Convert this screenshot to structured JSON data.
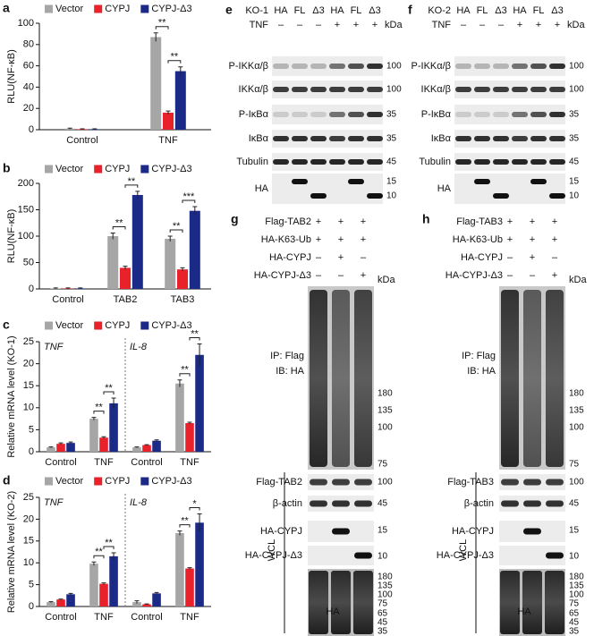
{
  "chart_data": [
    {
      "panel": "a",
      "type": "bar",
      "y_label": "RLU(NF-κB)",
      "categories": [
        "Control",
        "TNF"
      ],
      "series": [
        {
          "name": "Vector",
          "color": "#a6a6a6",
          "values": [
            1,
            87
          ],
          "errors": [
            0.5,
            4
          ]
        },
        {
          "name": "CYPJ",
          "color": "#e8212b",
          "values": [
            0.5,
            16
          ],
          "errors": [
            0.3,
            1.5
          ]
        },
        {
          "name": "CYPJ-Δ3",
          "color": "#1c2a87",
          "values": [
            0.5,
            55
          ],
          "errors": [
            0.3,
            4
          ]
        }
      ],
      "ylim": [
        0,
        100
      ],
      "yticks": [
        0,
        20,
        40,
        60,
        80,
        100
      ],
      "significance": [
        null,
        [
          {
            "between": [
              "Vector",
              "CYPJ"
            ],
            "label": "**"
          },
          {
            "between": [
              "CYPJ",
              "CYPJ-Δ3"
            ],
            "label": "**"
          }
        ]
      ]
    },
    {
      "panel": "b",
      "type": "bar",
      "y_label": "RLU(NF-κB)",
      "categories": [
        "Control",
        "TAB2",
        "TAB3"
      ],
      "series": [
        {
          "name": "Vector",
          "color": "#a6a6a6",
          "values": [
            1,
            100,
            95
          ],
          "errors": [
            1,
            6,
            5
          ]
        },
        {
          "name": "CYPJ",
          "color": "#e8212b",
          "values": [
            1,
            40,
            37
          ],
          "errors": [
            1,
            3,
            3
          ]
        },
        {
          "name": "CYPJ-Δ3",
          "color": "#1c2a87",
          "values": [
            1,
            178,
            148
          ],
          "errors": [
            1,
            7,
            8
          ]
        }
      ],
      "ylim": [
        0,
        200
      ],
      "yticks": [
        0,
        50,
        100,
        150,
        200
      ],
      "significance": [
        null,
        [
          {
            "between": [
              "Vector",
              "CYPJ"
            ],
            "label": "**"
          },
          {
            "between": [
              "CYPJ",
              "CYPJ-Δ3"
            ],
            "label": "**"
          }
        ],
        [
          {
            "between": [
              "Vector",
              "CYPJ"
            ],
            "label": "**"
          },
          {
            "between": [
              "CYPJ",
              "CYPJ-Δ3"
            ],
            "label": "***"
          }
        ]
      ]
    },
    {
      "panel": "c",
      "type": "bar",
      "y_label": "Relative mRNA level (KO-1)",
      "categories": [
        "Control",
        "TNF",
        "Control",
        "TNF"
      ],
      "group_labels": [
        "TNF",
        "IL-8"
      ],
      "series": [
        {
          "name": "Vector",
          "color": "#a6a6a6",
          "values": [
            1,
            7.5,
            1,
            15.5
          ],
          "errors": [
            0.1,
            0.3,
            0.1,
            0.8
          ]
        },
        {
          "name": "CYPJ",
          "color": "#e8212b",
          "values": [
            1.8,
            3.2,
            1.5,
            6.5
          ],
          "errors": [
            0.2,
            0.2,
            0.1,
            0.2
          ]
        },
        {
          "name": "CYPJ-Δ3",
          "color": "#1c2a87",
          "values": [
            2,
            11,
            2.5,
            22
          ],
          "errors": [
            0.2,
            1.2,
            0.2,
            2.5
          ]
        }
      ],
      "ylim": [
        0,
        25
      ],
      "yticks": [
        0,
        5,
        10,
        15,
        20,
        25
      ],
      "significance": [
        null,
        [
          {
            "between": [
              "Vector",
              "CYPJ"
            ],
            "label": "**"
          },
          {
            "between": [
              "CYPJ",
              "CYPJ-Δ3"
            ],
            "label": "**"
          }
        ],
        null,
        [
          {
            "between": [
              "Vector",
              "CYPJ"
            ],
            "label": "**"
          },
          {
            "between": [
              "CYPJ",
              "CYPJ-Δ3"
            ],
            "label": "**"
          }
        ]
      ]
    },
    {
      "panel": "d",
      "type": "bar",
      "y_label": "Relative mRNA level (KO-2)",
      "categories": [
        "Control",
        "TNF",
        "Control",
        "TNF"
      ],
      "group_labels": [
        "TNF",
        "IL-8"
      ],
      "series": [
        {
          "name": "Vector",
          "color": "#a6a6a6",
          "values": [
            1,
            9.8,
            1,
            16.8
          ],
          "errors": [
            0.1,
            0.4,
            0.3,
            0.5
          ]
        },
        {
          "name": "CYPJ",
          "color": "#e8212b",
          "values": [
            1.6,
            5.2,
            0.5,
            8.7
          ],
          "errors": [
            0.1,
            0.2,
            0.1,
            0.2
          ]
        },
        {
          "name": "CYPJ-Δ3",
          "color": "#1c2a87",
          "values": [
            2.8,
            11.5,
            3,
            19.2
          ],
          "errors": [
            0.2,
            0.8,
            0.2,
            2
          ]
        }
      ],
      "ylim": [
        0,
        25
      ],
      "yticks": [
        0,
        5,
        10,
        15,
        20,
        25
      ],
      "significance": [
        null,
        [
          {
            "between": [
              "Vector",
              "CYPJ"
            ],
            "label": "**"
          },
          {
            "between": [
              "CYPJ",
              "CYPJ-Δ3"
            ],
            "label": "**"
          }
        ],
        null,
        [
          {
            "between": [
              "Vector",
              "CYPJ"
            ],
            "label": "**"
          },
          {
            "between": [
              "CYPJ",
              "CYPJ-Δ3"
            ],
            "label": "*"
          }
        ]
      ]
    }
  ],
  "blots": [
    {
      "panel": "e",
      "cell_line": "KO-1",
      "lanes": [
        "HA",
        "FL",
        "Δ3",
        "HA",
        "FL",
        "Δ3"
      ],
      "treatment": {
        "label": "TNF",
        "marks": [
          "–",
          "–",
          "–",
          "+",
          "+",
          "+"
        ]
      },
      "unit": "kDa",
      "rows": [
        {
          "label": "P-IKKα/β",
          "markers": [
            100
          ]
        },
        {
          "label": "IKKα/β",
          "markers": [
            100
          ]
        },
        {
          "label": "P-IκBα",
          "markers": [
            35
          ]
        },
        {
          "label": "IκBα",
          "markers": [
            35
          ]
        },
        {
          "label": "Tubulin",
          "markers": [
            45
          ]
        },
        {
          "label": "HA",
          "markers": [
            15,
            10
          ]
        }
      ]
    },
    {
      "panel": "f",
      "cell_line": "KO-2",
      "lanes": [
        "HA",
        "FL",
        "Δ3",
        "HA",
        "FL",
        "Δ3"
      ],
      "treatment": {
        "label": "TNF",
        "marks": [
          "–",
          "–",
          "–",
          "+",
          "+",
          "+"
        ]
      },
      "unit": "kDa",
      "rows": [
        {
          "label": "P-IKKα/β",
          "markers": [
            100
          ]
        },
        {
          "label": "IKKα/β",
          "markers": [
            100
          ]
        },
        {
          "label": "P-IκBα",
          "markers": [
            35
          ]
        },
        {
          "label": "IκBα",
          "markers": [
            35
          ]
        },
        {
          "label": "Tubulin",
          "markers": [
            45
          ]
        },
        {
          "label": "HA",
          "markers": [
            15,
            10
          ]
        }
      ]
    },
    {
      "panel": "g",
      "conditions": [
        {
          "label": "Flag-TAB2",
          "marks": [
            "+",
            "+",
            "+"
          ]
        },
        {
          "label": "HA-K63-Ub",
          "marks": [
            "+",
            "+",
            "+"
          ]
        },
        {
          "label": "HA-CYPJ",
          "marks": [
            "–",
            "+",
            "–"
          ]
        },
        {
          "label": "HA-CYPJ-Δ3",
          "marks": [
            "–",
            "–",
            "+"
          ]
        }
      ],
      "unit": "kDa",
      "ip": {
        "lines": [
          "IP: Flag",
          "IB: HA"
        ],
        "markers": [
          180,
          135,
          100,
          75
        ]
      },
      "wcl": {
        "label": "WCL",
        "rows": [
          {
            "label": "Flag-TAB2",
            "markers": [
              100
            ]
          },
          {
            "label": "β-actin",
            "markers": [
              45
            ]
          },
          {
            "label": "HA-CYPJ",
            "markers": [
              15
            ]
          },
          {
            "label": "HA-CYPJ-Δ3",
            "markers": [
              10
            ]
          },
          {
            "label": "HA",
            "markers": [
              180,
              135,
              100,
              75,
              65,
              45,
              35
            ]
          }
        ]
      }
    },
    {
      "panel": "h",
      "conditions": [
        {
          "label": "Flag-TAB3",
          "marks": [
            "+",
            "+",
            "+"
          ]
        },
        {
          "label": "HA-K63-Ub",
          "marks": [
            "+",
            "+",
            "+"
          ]
        },
        {
          "label": "HA-CYPJ",
          "marks": [
            "–",
            "+",
            "–"
          ]
        },
        {
          "label": "HA-CYPJ-Δ3",
          "marks": [
            "–",
            "–",
            "+"
          ]
        }
      ],
      "unit": "kDa",
      "ip": {
        "lines": [
          "IP: Flag",
          "IB: HA"
        ],
        "markers": [
          180,
          135,
          100,
          75
        ]
      },
      "wcl": {
        "label": "WCL",
        "rows": [
          {
            "label": "Flag-TAB3",
            "markers": [
              100
            ]
          },
          {
            "label": "β-actin",
            "markers": [
              45
            ]
          },
          {
            "label": "HA-CYPJ",
            "markers": [
              15
            ]
          },
          {
            "label": "HA-CYPJ-Δ3",
            "markers": [
              10
            ]
          },
          {
            "label": "HA",
            "markers": [
              180,
              135,
              100,
              75,
              65,
              45,
              35
            ]
          }
        ]
      }
    }
  ]
}
